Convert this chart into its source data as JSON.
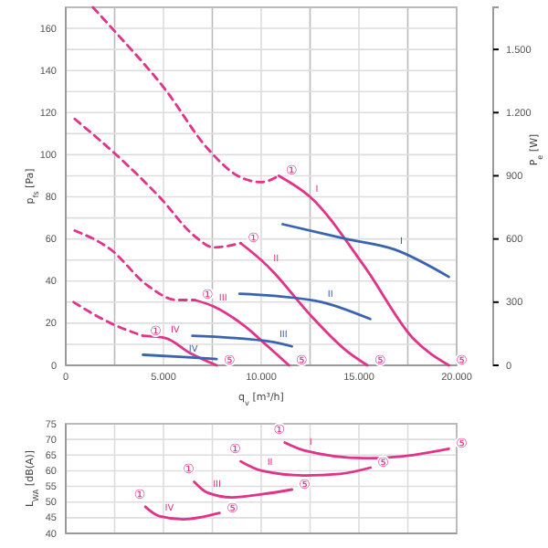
{
  "chart_data": [
    {
      "type": "line",
      "xlabel": "q$_{v}$ [m³/h]",
      "ylabel": "p$_{fs}$ [Pa]",
      "y2label": "P$_{e}$ [W]",
      "grid": true,
      "marker": "none",
      "xlim": [
        0,
        20000
      ],
      "ylim": [
        0,
        170
      ],
      "y2lim": [
        0,
        1700
      ],
      "xticks": [
        0,
        {
          "value": 2500,
          "label": null
        },
        {
          "value": 5000,
          "label": "5.000"
        },
        {
          "value": 7500,
          "label": null
        },
        {
          "value": 10000,
          "label": "10.000"
        },
        {
          "value": 12500,
          "label": null
        },
        {
          "value": 15000,
          "label": "15.000"
        },
        {
          "value": 17500,
          "label": null
        },
        {
          "value": 20000,
          "label": "20.000"
        }
      ],
      "yticks": [
        0,
        {
          "value": 10,
          "label": null
        },
        20,
        {
          "value": 30,
          "label": null
        },
        40,
        {
          "value": 50,
          "label": null
        },
        60,
        {
          "value": 70,
          "label": null
        },
        80,
        {
          "value": 90,
          "label": null
        },
        100,
        {
          "value": 110,
          "label": null
        },
        120,
        {
          "value": 130,
          "label": null
        },
        140,
        {
          "value": 150,
          "label": null
        },
        160
      ],
      "y2ticks": [
        0,
        300,
        600,
        900,
        {
          "value": 1200,
          "label": "1.200"
        },
        {
          "value": 1500,
          "label": "1.500"
        }
      ],
      "series": [
        {
          "color": "#e0338a",
          "line_style": "dashed",
          "x": [
            1390,
            2470,
            5090,
            7250,
            8800,
            10000,
            10900
          ],
          "values": [
            170,
            159,
            131,
            103,
            90,
            87,
            90
          ]
        },
        {
          "name": "I",
          "color": "#e0338a",
          "line_style": "solid",
          "x": [
            10900,
            12500,
            15280,
            17750,
            19600
          ],
          "values": [
            90,
            80,
            47,
            13,
            0
          ]
        },
        {
          "color": "#e0338a",
          "line_style": "dashed",
          "x": [
            460,
            2930,
            4790,
            6640,
            7560,
            8950
          ],
          "values": [
            117,
            97,
            80,
            61,
            56,
            58
          ]
        },
        {
          "name": "II",
          "color": "#e0338a",
          "line_style": "solid",
          "x": [
            8950,
            10340,
            10650,
            12500,
            14350,
            15430
          ],
          "values": [
            58,
            47,
            44,
            24,
            7,
            0
          ]
        },
        {
          "color": "#e0338a",
          "line_style": "dashed",
          "x": [
            460,
            2300,
            4170,
            5710,
            6600
          ],
          "values": [
            64,
            55,
            38,
            31,
            31
          ]
        },
        {
          "name": "III",
          "color": "#e0338a",
          "line_style": "solid",
          "x": [
            6600,
            7560,
            9100,
            10340,
            11420
          ],
          "values": [
            31,
            28,
            19,
            9,
            0
          ]
        },
        {
          "color": "#e0338a",
          "line_style": "dashed",
          "x": [
            400,
            2300,
            3950
          ],
          "values": [
            30,
            20,
            14
          ]
        },
        {
          "name": "IV",
          "color": "#e0338a",
          "line_style": "solid",
          "x": [
            3950,
            5090,
            6330,
            7720
          ],
          "values": [
            14,
            13,
            6,
            0
          ]
        },
        {
          "name": "I",
          "color": "#3a64b0",
          "line_style": "solid",
          "axis": "y2",
          "x": [
            11100,
            14350,
            16820,
            19600
          ],
          "values": [
            670,
            600,
            550,
            420
          ]
        },
        {
          "name": "II",
          "color": "#3a64b0",
          "line_style": "solid",
          "axis": "y2",
          "x": [
            8890,
            10650,
            13120,
            15580
          ],
          "values": [
            340,
            330,
            300,
            220
          ]
        },
        {
          "name": "III",
          "color": "#3a64b0",
          "line_style": "solid",
          "axis": "y2",
          "x": [
            6480,
            10650,
            11570
          ],
          "values": [
            140,
            110,
            90
          ]
        },
        {
          "name": "IV",
          "color": "#3a64b0",
          "line_style": "solid",
          "axis": "y2",
          "x": [
            3950,
            6020,
            7720
          ],
          "values": [
            50,
            40,
            30
          ]
        }
      ],
      "annotations": [
        {
          "text": "①",
          "x": 10900,
          "y": 90
        },
        {
          "text": "⑤",
          "x": 19600,
          "y": 0
        },
        {
          "text": "①",
          "x": 8950,
          "y": 58
        },
        {
          "text": "⑤",
          "x": 15430,
          "y": 0
        },
        {
          "text": "①",
          "x": 6600,
          "y": 31
        },
        {
          "text": "⑤",
          "x": 11420,
          "y": 0
        },
        {
          "text": "①",
          "x": 3950,
          "y": 14
        },
        {
          "text": "⑤",
          "x": 7720,
          "y": 0
        }
      ]
    },
    {
      "type": "line",
      "ylabel": "L$_{WA}$ [dB(A)]",
      "grid": true,
      "marker": "none",
      "tick_labels": "y",
      "xlim": [
        0,
        20000
      ],
      "ylim": [
        40,
        75
      ],
      "xticks": [
        0,
        2500,
        5000,
        7500,
        10000,
        12500,
        15000,
        17500,
        20000
      ],
      "yticks": [
        40,
        45,
        50,
        55,
        60,
        65,
        70,
        75
      ],
      "series": [
        {
          "name": "I",
          "color": "#e0338a",
          "line_style": "solid",
          "x": [
            11200,
            12190,
            15280,
            17750,
            19600
          ],
          "values": [
            69,
            66.5,
            64,
            65,
            67
          ]
        },
        {
          "name": "II",
          "color": "#e0338a",
          "line_style": "solid",
          "x": [
            8950,
            10030,
            12190,
            14040,
            15590
          ],
          "values": [
            63,
            60,
            58.5,
            59,
            61
          ]
        },
        {
          "name": "III",
          "color": "#e0338a",
          "line_style": "solid",
          "x": [
            6570,
            7250,
            8490,
            10030,
            11570
          ],
          "values": [
            56.5,
            53,
            51.5,
            52.5,
            54
          ]
        },
        {
          "name": "IV",
          "color": "#e0338a",
          "line_style": "solid",
          "x": [
            4070,
            4790,
            6020,
            7870
          ],
          "values": [
            48.5,
            45.5,
            44.5,
            46.5
          ]
        }
      ],
      "annotations": [
        {
          "text": "①",
          "x": 11200,
          "y": 69
        },
        {
          "text": "⑤",
          "x": 19600,
          "y": 67
        },
        {
          "text": "①",
          "x": 8950,
          "y": 63
        },
        {
          "text": "⑤",
          "x": 15590,
          "y": 61
        },
        {
          "text": "①",
          "x": 6570,
          "y": 56.5
        },
        {
          "text": "⑤",
          "x": 11570,
          "y": 54
        },
        {
          "text": "①",
          "x": 4070,
          "y": 48.5
        },
        {
          "text": "⑤",
          "x": 7870,
          "y": 46.5
        }
      ]
    }
  ]
}
